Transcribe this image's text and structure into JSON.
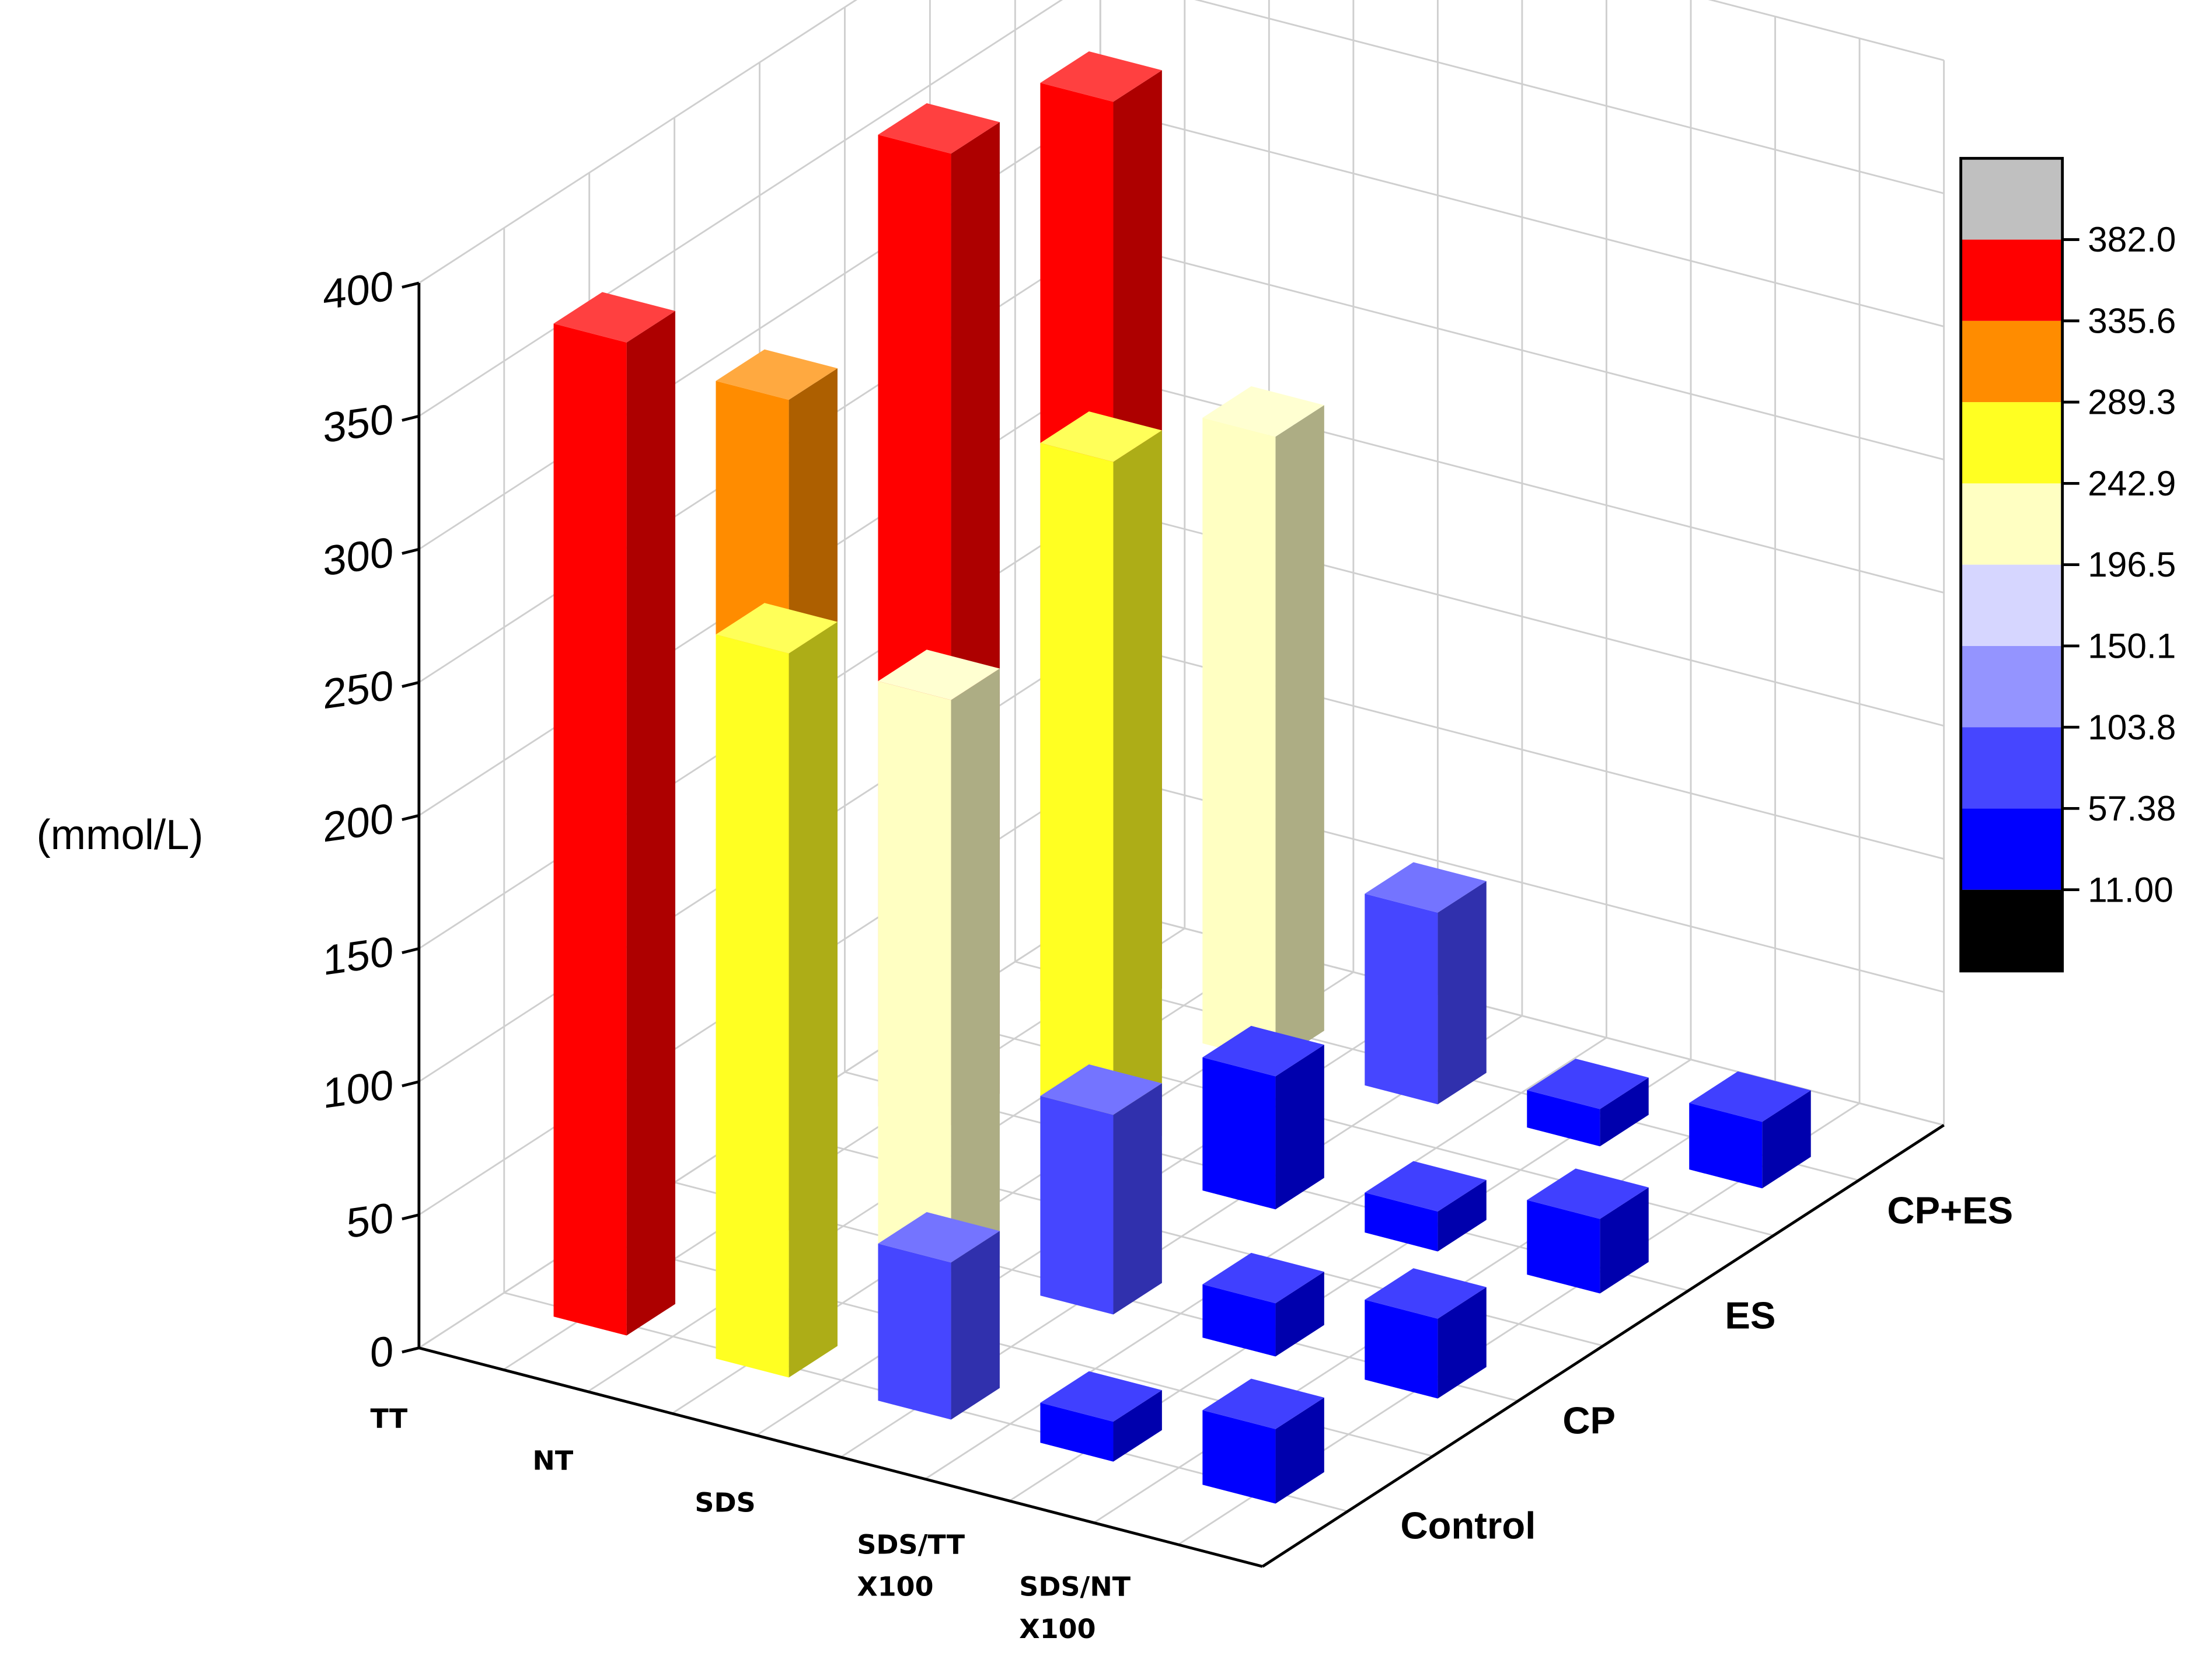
{
  "chart_data": {
    "type": "bar3d",
    "ylabel": "(mmol/L)",
    "categories": [
      "TT",
      "NT",
      "SDS",
      "SDS/TT X100",
      "SDS/NT X100"
    ],
    "series": [
      {
        "name": "Control",
        "values": [
          373,
          272,
          59,
          15,
          28
        ]
      },
      {
        "name": "CP",
        "values": [
          312,
          215,
          75,
          20,
          30
        ]
      },
      {
        "name": "ES",
        "values": [
          365,
          265,
          50,
          15,
          28
        ]
      },
      {
        "name": "CP+ES",
        "values": [
          345,
          235,
          72,
          14,
          25
        ]
      }
    ],
    "zlim": [
      0,
      400
    ],
    "zticks": [
      0,
      50,
      100,
      150,
      200,
      250,
      300,
      350,
      400
    ],
    "grid": true,
    "colorbar": {
      "ticks": [
        {
          "value": 11,
          "label": "11.00"
        },
        57.38,
        103.8,
        150.1,
        196.5,
        242.9,
        289.3,
        335.6,
        {
          "value": 382,
          "label": "382.0"
        }
      ],
      "colors": [
        "#000000",
        "#0000ff",
        "#4646ff",
        "#9494ff",
        "#d6d6ff",
        "#ffffc2",
        "#ffff22",
        "#ff8c00",
        "#ff0000",
        "#c0c0c0"
      ]
    }
  }
}
